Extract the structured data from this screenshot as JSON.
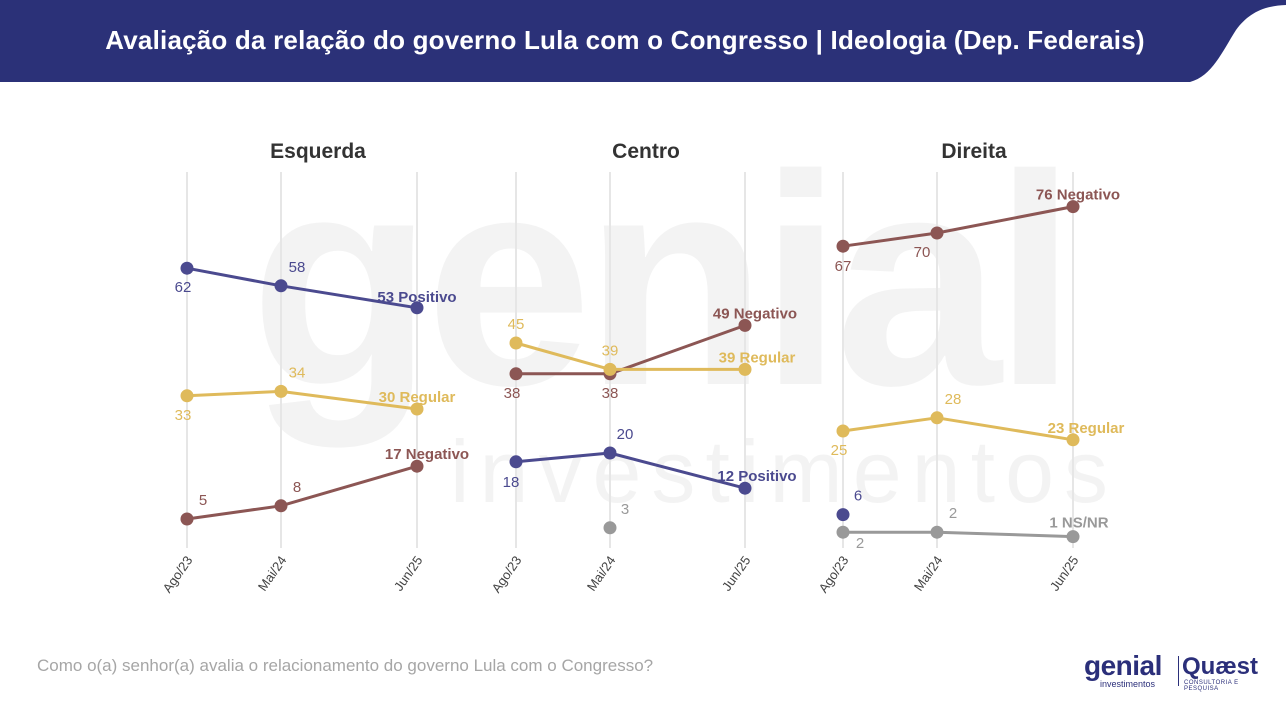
{
  "header": {
    "title": "Avaliação da relação do governo Lula com o Congresso | Ideologia (Dep. Federais)",
    "bg_color": "#2b3178"
  },
  "footer": {
    "question": "Como o(a) senhor(a) avalia o relacionamento do governo Lula com o Congresso?"
  },
  "logos": {
    "genial": "genial",
    "genial_sub": "investimentos",
    "quaest": "Quæst",
    "quaest_sub": "CONSULTORIA E PESQUISA"
  },
  "watermark": {
    "big": "genial",
    "small": "investimentos"
  },
  "colors": {
    "Positivo": "#4b4a8f",
    "Regular": "#dfba5b",
    "Negativo": "#8c5654",
    "NS/NR": "#999999"
  },
  "chart_data": [
    {
      "type": "line",
      "title": "Esquerda",
      "x": [
        "Ago/23",
        "Mai/24",
        "Jun/25"
      ],
      "series": [
        {
          "name": "Positivo",
          "values": [
            62,
            58,
            53
          ]
        },
        {
          "name": "Regular",
          "values": [
            33,
            34,
            30
          ]
        },
        {
          "name": "Negativo",
          "values": [
            5,
            8,
            17
          ]
        }
      ]
    },
    {
      "type": "line",
      "title": "Centro",
      "x": [
        "Ago/23",
        "Mai/24",
        "Jun/25"
      ],
      "series": [
        {
          "name": "Negativo",
          "values": [
            38,
            38,
            49
          ]
        },
        {
          "name": "Regular",
          "values": [
            45,
            39,
            39
          ]
        },
        {
          "name": "Positivo",
          "values": [
            18,
            20,
            12
          ]
        },
        {
          "name": "NS/NR",
          "values": [
            null,
            3,
            null
          ]
        }
      ]
    },
    {
      "type": "line",
      "title": "Direita",
      "x": [
        "Ago/23",
        "Mai/24",
        "Jun/25"
      ],
      "series": [
        {
          "name": "Negativo",
          "values": [
            67,
            70,
            76
          ]
        },
        {
          "name": "Regular",
          "values": [
            25,
            28,
            23
          ]
        },
        {
          "name": "Positivo",
          "values": [
            6,
            null,
            null
          ]
        },
        {
          "name": "NS/NR",
          "values": [
            2,
            2,
            1
          ]
        }
      ]
    }
  ]
}
